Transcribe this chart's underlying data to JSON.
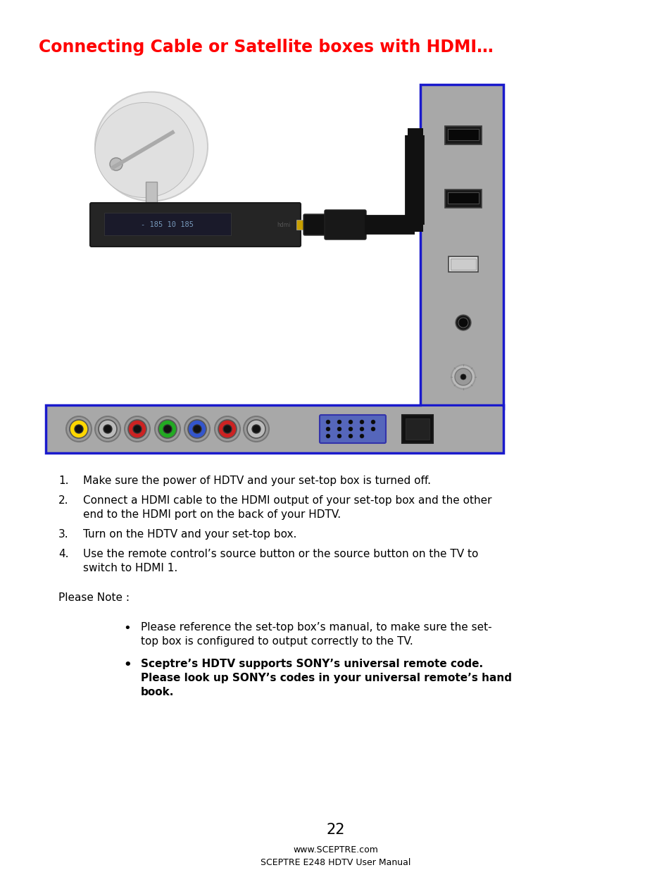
{
  "title": "Connecting Cable or Satellite boxes with HDMI…",
  "title_color": "#FF0000",
  "title_fontsize": 17,
  "bg_color": "#FFFFFF",
  "border_color": "#1a1aCC",
  "instructions_1": "Make sure the power of HDTV and your set-top box is turned off.",
  "instructions_2a": "Connect a HDMI cable to the HDMI output of your set-top box and the other",
  "instructions_2b": "end to the HDMI port on the back of your HDTV.",
  "instructions_3": "Turn on the HDTV and your set-top box.",
  "instructions_4a": "Use the remote control’s source button or the source button on the TV to",
  "instructions_4b": "switch to HDMI 1.",
  "please_note": "Please Note :",
  "bullet1a": "Please reference the set-top box’s manual, to make sure the set-",
  "bullet1b": "top box is configured to output correctly to the TV.",
  "bullet2a": "Sceptre’s HDTV supports SONY’s universal remote code.",
  "bullet2b": "Please look up SONY’s codes in your universal remote’s hand",
  "bullet2c": "book.",
  "page_number": "22",
  "footer_line1": "www.SCEPTRE.com",
  "footer_line2": "SCEPTRE E248 HDTV User Manual",
  "panel_color": "#A8A8A8",
  "diagram_border": "#1a1aCC",
  "cable_color": "#111111",
  "rca_colors": [
    "#FFD700",
    "#BBBBBB",
    "#CC2222",
    "#22AA22",
    "#3355CC",
    "#CC2222",
    "#BBBBBB"
  ]
}
